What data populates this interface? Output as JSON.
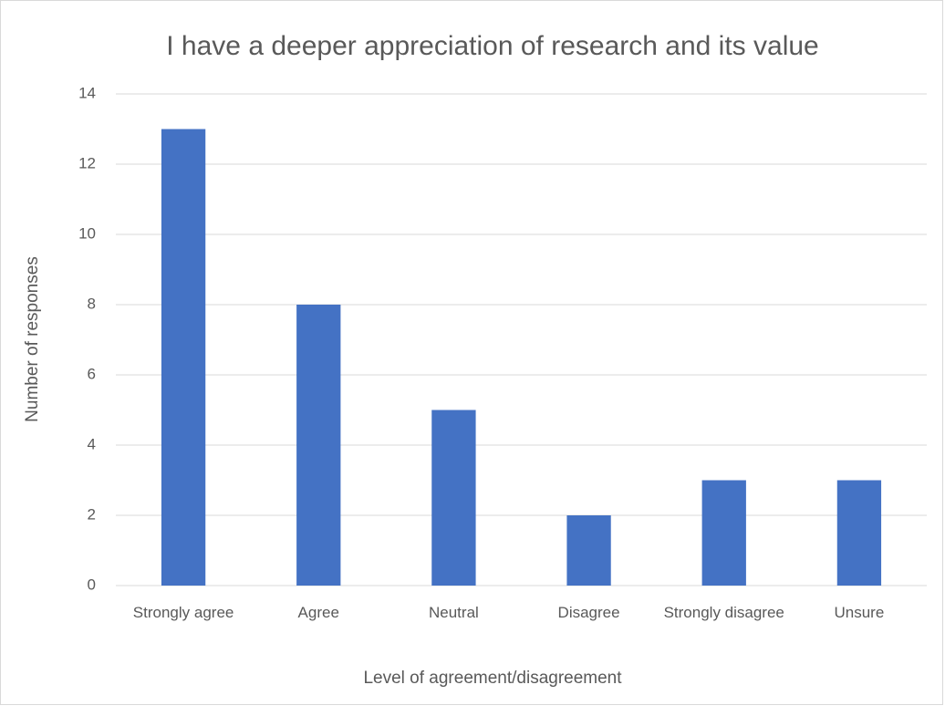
{
  "chart_data": {
    "type": "bar",
    "title": "I have a deeper appreciation of research and its value",
    "x_label": "Level of agreement/disagreement",
    "y_label": "Number of responses",
    "categories": [
      "Strongly agree",
      "Agree",
      "Neutral",
      "Disagree",
      "Strongly disagree",
      "Unsure"
    ],
    "values": [
      13,
      8,
      5,
      2,
      3,
      3
    ],
    "color": "#4472c4",
    "ylim": [
      0,
      14
    ],
    "yticks": [
      0,
      2,
      4,
      6,
      8,
      10,
      12,
      14
    ],
    "grid": true
  }
}
